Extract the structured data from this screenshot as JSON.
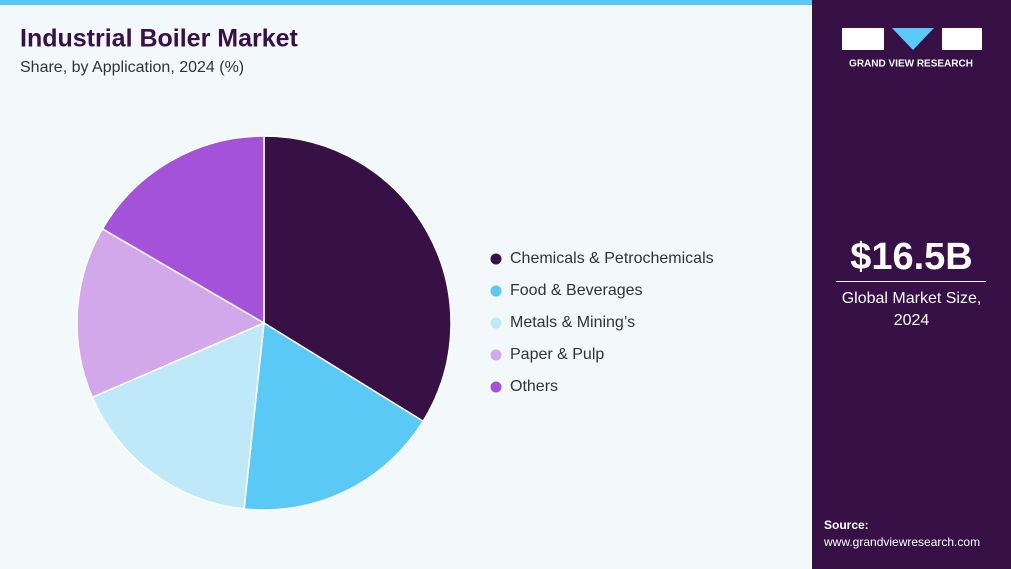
{
  "chart_data": {
    "type": "pie",
    "title": "Industrial Boiler Market",
    "subtitle": "Share, by Application, 2024 (%)",
    "categories": [
      "Chemicals & Petrochemicals",
      "Food & Beverages",
      "Metals & Mining’s",
      "Paper & Pulp",
      "Others"
    ],
    "values": [
      33.8,
      17.9,
      16.8,
      14.9,
      16.6
    ],
    "colors": [
      "#371146",
      "#5bc9f5",
      "#bfe9f8",
      "#d3a8ea",
      "#a452da"
    ]
  },
  "sidebar": {
    "brand": "GRAND VIEW RESEARCH",
    "market_size": "$16.5B",
    "market_size_label": "Global Market Size, 2024",
    "source_label": "Source:",
    "source_url": "www.grandviewresearch.com"
  }
}
